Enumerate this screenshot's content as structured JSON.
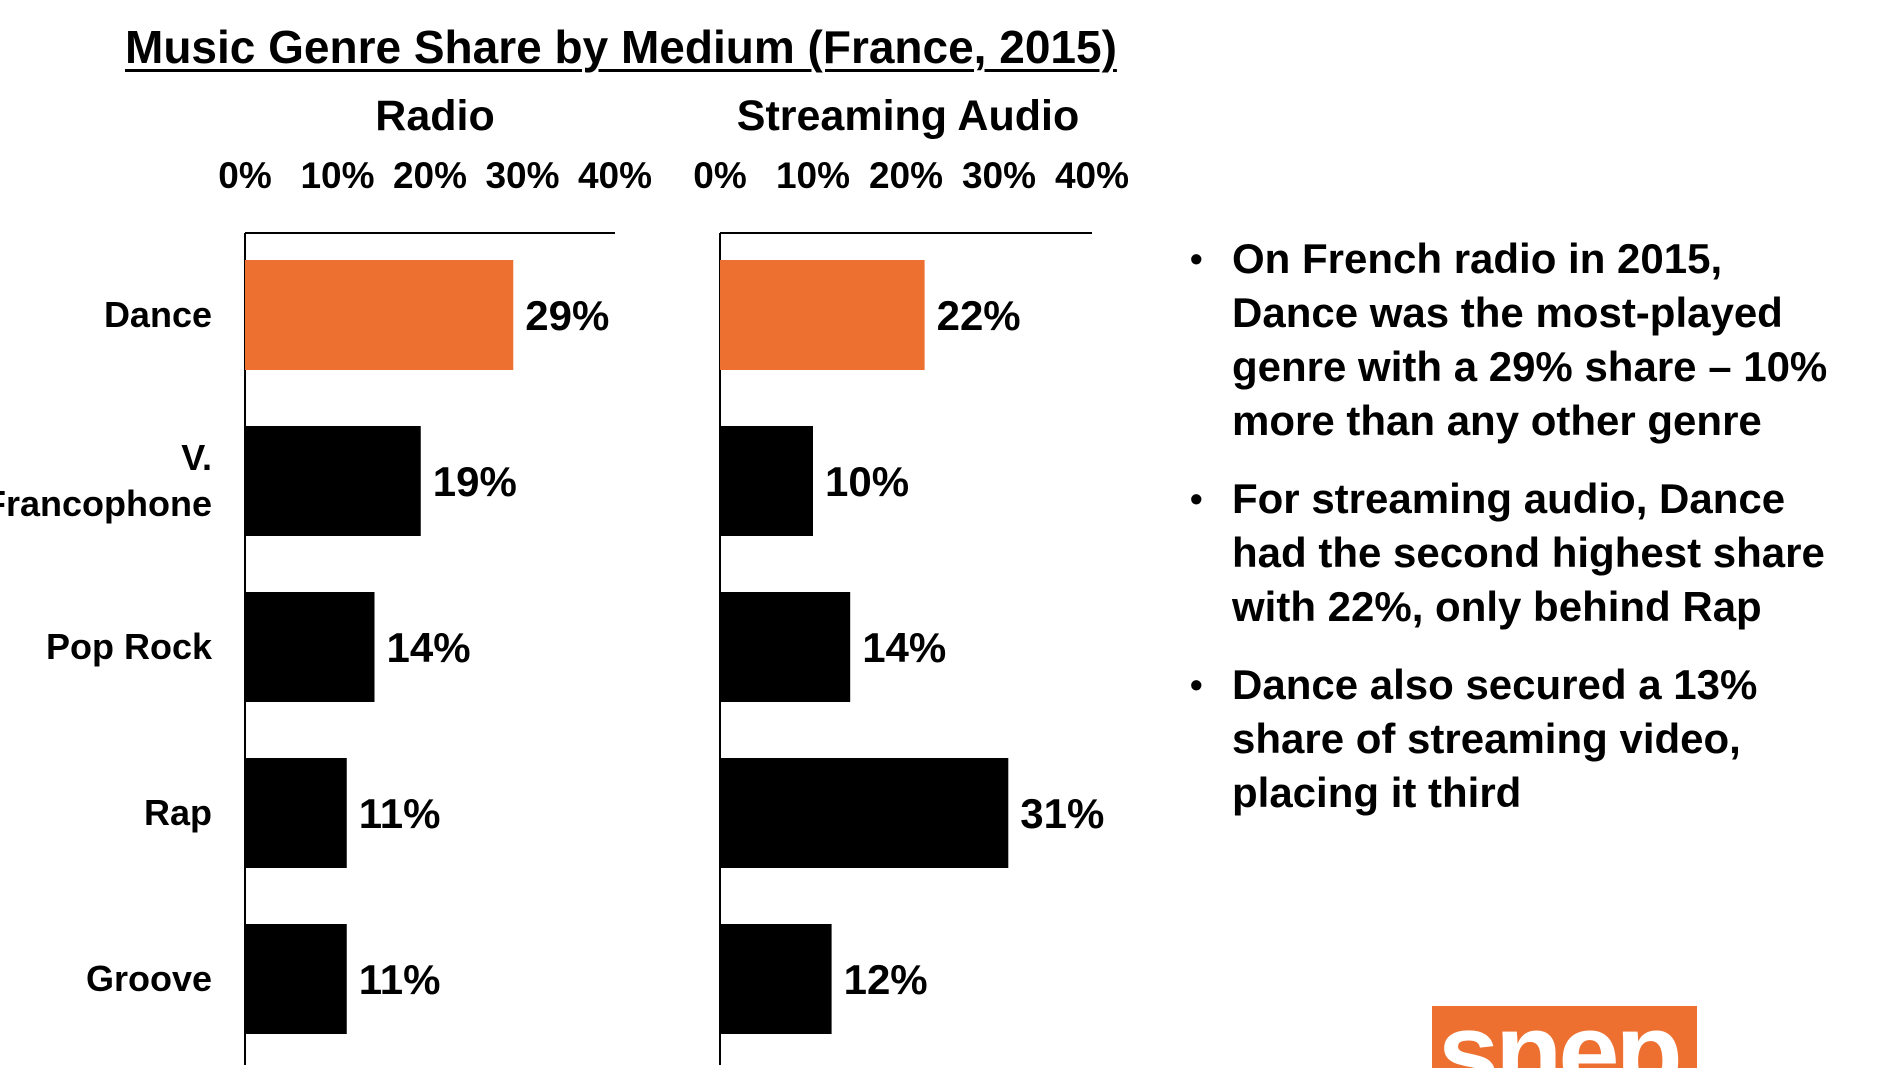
{
  "title": "Music Genre Share by Medium (France, 2015)",
  "colors": {
    "highlight": "#ee7030",
    "bar": "#000000",
    "axis": "#000000"
  },
  "chart_data": [
    {
      "type": "bar",
      "orientation": "horizontal",
      "title": "Radio",
      "categories": [
        "Dance",
        "V. Francophone",
        "Pop Rock",
        "Rap",
        "Groove"
      ],
      "values": [
        29,
        19,
        14,
        11,
        11
      ],
      "data_labels": [
        "29%",
        "19%",
        "14%",
        "11%",
        "11%"
      ],
      "highlight_index": 0,
      "xlim": [
        0,
        40
      ],
      "x_ticks": [
        "0%",
        "10%",
        "20%",
        "30%",
        "40%"
      ],
      "x_axis_position": "top",
      "grid": false,
      "legend": "none"
    },
    {
      "type": "bar",
      "orientation": "horizontal",
      "title": "Streaming Audio",
      "categories": [
        "Dance",
        "V. Francophone",
        "Pop Rock",
        "Rap",
        "Groove"
      ],
      "values": [
        22,
        10,
        14,
        31,
        12
      ],
      "data_labels": [
        "22%",
        "10%",
        "14%",
        "31%",
        "12%"
      ],
      "highlight_index": 0,
      "xlim": [
        0,
        40
      ],
      "x_ticks": [
        "0%",
        "10%",
        "20%",
        "30%",
        "40%"
      ],
      "x_axis_position": "top",
      "grid": false,
      "legend": "none"
    }
  ],
  "category_labels": [
    [
      "Dance"
    ],
    [
      "V.",
      "Francophone"
    ],
    [
      "Pop Rock"
    ],
    [
      "Rap"
    ],
    [
      "Groove"
    ]
  ],
  "notes": [
    "On French radio in 2015, Dance was the most-played genre with a 29% share – 10% more than any other genre",
    "For streaming audio, Dance had the second highest share with 22%, only behind Rap",
    "Dance also secured a 13% share of streaming video, placing it third"
  ],
  "logo_text": "snep"
}
